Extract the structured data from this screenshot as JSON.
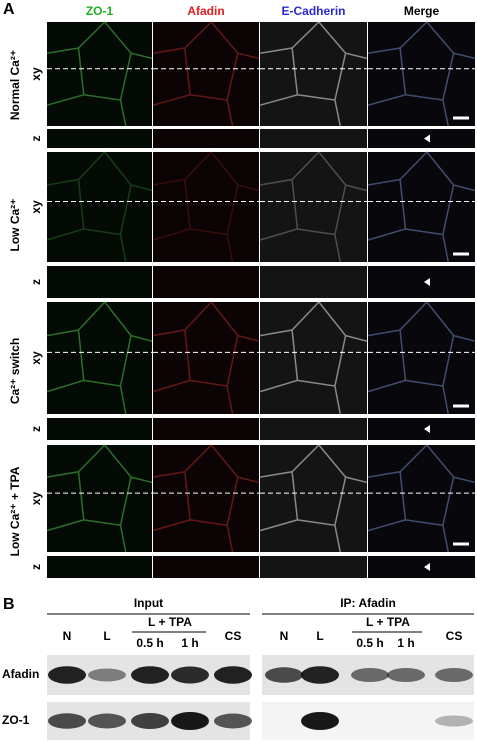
{
  "panel_a": {
    "label": "A",
    "columns": [
      "ZO-1",
      "Afadin",
      "E-Cadherin",
      "Merge"
    ],
    "rows": [
      {
        "condition": "Normal Ca²⁺",
        "views": [
          "xy",
          "z"
        ]
      },
      {
        "condition": "Low Ca²⁺",
        "views": [
          "xy",
          "z"
        ]
      },
      {
        "condition": "Ca²⁺ switch",
        "views": [
          "xy",
          "z"
        ]
      },
      {
        "condition": "Low Ca²⁺ + TPA",
        "views": [
          "xy",
          "z"
        ]
      }
    ]
  },
  "panel_b": {
    "label": "B",
    "groups": [
      {
        "title": "Input",
        "lanes": [
          "N",
          "L"
        ],
        "treatment": "L + TPA",
        "times": [
          "0.5 h",
          "1 h"
        ],
        "last": "CS"
      },
      {
        "title": "IP: Afadin",
        "lanes": [
          "N",
          "L"
        ],
        "treatment": "L + TPA",
        "times": [
          "0.5 h",
          "1 h"
        ],
        "last": "CS"
      }
    ],
    "blots": [
      "Afadin",
      "ZO-1"
    ]
  }
}
